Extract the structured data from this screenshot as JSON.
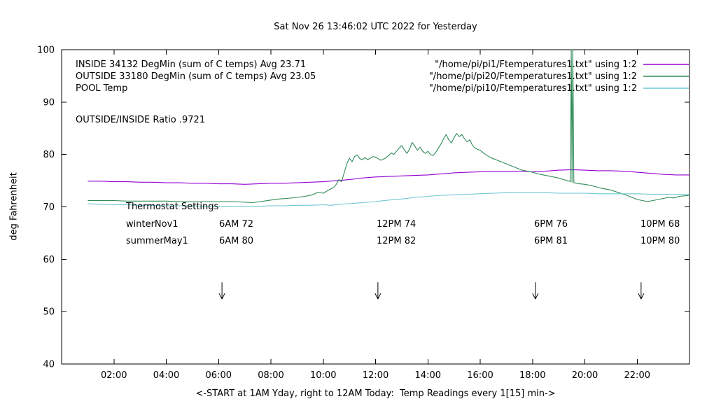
{
  "chart_data": {
    "type": "line",
    "title": "Sat Nov 26 13:46:02 UTC 2022 for Yesterday",
    "xlabel": "<-START at 1AM Yday, right to 12AM Today:  Temp Readings every 1[15] min->",
    "ylabel": "deg Fahrenheit",
    "xlim": [
      0,
      24
    ],
    "ylim": [
      40,
      100
    ],
    "grid": false,
    "yticks": [
      40,
      50,
      60,
      70,
      80,
      90,
      100
    ],
    "xticks": [
      {
        "v": 2,
        "label": "02:00"
      },
      {
        "v": 4,
        "label": "04:00"
      },
      {
        "v": 6,
        "label": "06:00"
      },
      {
        "v": 8,
        "label": "08:00"
      },
      {
        "v": 10,
        "label": "10:00"
      },
      {
        "v": 12,
        "label": "12:00"
      },
      {
        "v": 14,
        "label": "14:00"
      },
      {
        "v": 16,
        "label": "16:00"
      },
      {
        "v": 18,
        "label": "18:00"
      },
      {
        "v": 20,
        "label": "20:00"
      },
      {
        "v": 22,
        "label": "22:00"
      }
    ],
    "arrows_x": [
      6.13,
      12.09,
      18.11,
      22.15
    ],
    "arrow_y": [
      55.6,
      52.4
    ],
    "series": [
      {
        "name": "INSIDE",
        "color": "#9400d3",
        "points": [
          [
            1,
            74.9
          ],
          [
            1.5,
            74.9
          ],
          [
            2,
            74.8
          ],
          [
            2.5,
            74.8
          ],
          [
            3,
            74.7
          ],
          [
            3.5,
            74.7
          ],
          [
            4,
            74.6
          ],
          [
            4.5,
            74.6
          ],
          [
            5,
            74.5
          ],
          [
            5.5,
            74.5
          ],
          [
            6,
            74.4
          ],
          [
            6.5,
            74.4
          ],
          [
            7,
            74.3
          ],
          [
            7.5,
            74.4
          ],
          [
            8,
            74.5
          ],
          [
            8.5,
            74.5
          ],
          [
            9,
            74.6
          ],
          [
            9.5,
            74.7
          ],
          [
            10,
            74.8
          ],
          [
            10.5,
            75.0
          ],
          [
            11,
            75.2
          ],
          [
            11.5,
            75.5
          ],
          [
            12,
            75.7
          ],
          [
            12.5,
            75.8
          ],
          [
            13,
            75.9
          ],
          [
            13.5,
            76.0
          ],
          [
            14,
            76.1
          ],
          [
            14.5,
            76.3
          ],
          [
            15,
            76.5
          ],
          [
            15.5,
            76.6
          ],
          [
            16,
            76.7
          ],
          [
            16.5,
            76.8
          ],
          [
            17,
            76.8
          ],
          [
            17.5,
            76.8
          ],
          [
            18,
            76.7
          ],
          [
            18.5,
            76.8
          ],
          [
            19,
            77.0
          ],
          [
            19.5,
            77.1
          ],
          [
            20,
            77.0
          ],
          [
            20.5,
            76.9
          ],
          [
            21,
            76.9
          ],
          [
            21.5,
            76.8
          ],
          [
            22,
            76.6
          ],
          [
            22.5,
            76.4
          ],
          [
            23,
            76.2
          ],
          [
            23.5,
            76.1
          ],
          [
            24,
            76.1
          ]
        ]
      },
      {
        "name": "OUTSIDE",
        "color": "#2e8b57",
        "points": [
          [
            1,
            71.2
          ],
          [
            1.5,
            71.2
          ],
          [
            2,
            71.2
          ],
          [
            2.5,
            71.1
          ],
          [
            3,
            71.1
          ],
          [
            3.5,
            71.1
          ],
          [
            4,
            71.1
          ],
          [
            4.5,
            71.0
          ],
          [
            5,
            71.0
          ],
          [
            5.5,
            71.0
          ],
          [
            6,
            71.0
          ],
          [
            6.5,
            71.0
          ],
          [
            7,
            70.9
          ],
          [
            7.3,
            70.8
          ],
          [
            7.6,
            71.0
          ],
          [
            8,
            71.3
          ],
          [
            8.3,
            71.5
          ],
          [
            8.6,
            71.6
          ],
          [
            9,
            71.8
          ],
          [
            9.3,
            72.0
          ],
          [
            9.6,
            72.3
          ],
          [
            9.8,
            72.8
          ],
          [
            10,
            72.6
          ],
          [
            10.2,
            73.2
          ],
          [
            10.4,
            73.7
          ],
          [
            10.5,
            74.3
          ],
          [
            10.6,
            75.2
          ],
          [
            10.7,
            74.8
          ],
          [
            10.8,
            76.5
          ],
          [
            10.9,
            78.2
          ],
          [
            11,
            79.3
          ],
          [
            11.1,
            78.6
          ],
          [
            11.2,
            79.6
          ],
          [
            11.3,
            79.9
          ],
          [
            11.4,
            79.2
          ],
          [
            11.5,
            79.0
          ],
          [
            11.6,
            79.4
          ],
          [
            11.7,
            79.0
          ],
          [
            11.8,
            79.3
          ],
          [
            11.9,
            79.6
          ],
          [
            12,
            79.5
          ],
          [
            12.1,
            79.2
          ],
          [
            12.2,
            78.9
          ],
          [
            12.3,
            79.1
          ],
          [
            12.4,
            79.4
          ],
          [
            12.5,
            79.8
          ],
          [
            12.6,
            80.3
          ],
          [
            12.7,
            80.0
          ],
          [
            12.8,
            80.6
          ],
          [
            12.9,
            81.2
          ],
          [
            13,
            81.7
          ],
          [
            13.1,
            80.9
          ],
          [
            13.2,
            80.2
          ],
          [
            13.3,
            81.0
          ],
          [
            13.4,
            82.3
          ],
          [
            13.5,
            81.6
          ],
          [
            13.6,
            80.8
          ],
          [
            13.7,
            81.4
          ],
          [
            13.8,
            80.6
          ],
          [
            13.9,
            80.2
          ],
          [
            14,
            80.6
          ],
          [
            14.1,
            80.0
          ],
          [
            14.2,
            79.8
          ],
          [
            14.3,
            80.4
          ],
          [
            14.4,
            81.2
          ],
          [
            14.5,
            82.0
          ],
          [
            14.6,
            83.0
          ],
          [
            14.7,
            83.8
          ],
          [
            14.8,
            82.8
          ],
          [
            14.9,
            82.2
          ],
          [
            15,
            83.2
          ],
          [
            15.1,
            84.0
          ],
          [
            15.2,
            83.4
          ],
          [
            15.3,
            83.8
          ],
          [
            15.4,
            83.0
          ],
          [
            15.5,
            82.4
          ],
          [
            15.6,
            82.8
          ],
          [
            15.7,
            81.8
          ],
          [
            15.8,
            81.2
          ],
          [
            16,
            80.8
          ],
          [
            16.2,
            80.0
          ],
          [
            16.4,
            79.4
          ],
          [
            16.6,
            79.0
          ],
          [
            16.8,
            78.6
          ],
          [
            17,
            78.2
          ],
          [
            17.3,
            77.6
          ],
          [
            17.6,
            77.0
          ],
          [
            18,
            76.6
          ],
          [
            18.3,
            76.2
          ],
          [
            18.6,
            75.9
          ],
          [
            19,
            75.5
          ],
          [
            19.2,
            75.2
          ],
          [
            19.4,
            74.9
          ],
          [
            19.45,
            74.8
          ],
          [
            19.48,
            100
          ],
          [
            19.51,
            74.7
          ],
          [
            19.54,
            100
          ],
          [
            19.58,
            74.6
          ],
          [
            19.8,
            74.4
          ],
          [
            20,
            74.3
          ],
          [
            20.3,
            74.0
          ],
          [
            20.6,
            73.6
          ],
          [
            21,
            73.2
          ],
          [
            21.3,
            72.7
          ],
          [
            21.6,
            72.2
          ],
          [
            21.8,
            71.8
          ],
          [
            22,
            71.4
          ],
          [
            22.2,
            71.2
          ],
          [
            22.4,
            71.0
          ],
          [
            22.6,
            71.2
          ],
          [
            22.8,
            71.4
          ],
          [
            23,
            71.6
          ],
          [
            23.2,
            71.8
          ],
          [
            23.4,
            71.7
          ],
          [
            23.6,
            72.0
          ],
          [
            23.8,
            72.1
          ],
          [
            24,
            72.2
          ]
        ]
      },
      {
        "name": "POOL",
        "color": "#6ec6d2",
        "points": [
          [
            1,
            70.6
          ],
          [
            1.5,
            70.5
          ],
          [
            2,
            70.4
          ],
          [
            2.5,
            70.4
          ],
          [
            3,
            70.3
          ],
          [
            3.5,
            70.3
          ],
          [
            4,
            70.2
          ],
          [
            4.5,
            70.2
          ],
          [
            5,
            70.2
          ],
          [
            5.5,
            70.1
          ],
          [
            6,
            70.1
          ],
          [
            6.5,
            70.1
          ],
          [
            7,
            70.1
          ],
          [
            7.5,
            70.1
          ],
          [
            8,
            70.2
          ],
          [
            8.5,
            70.2
          ],
          [
            9,
            70.3
          ],
          [
            9.5,
            70.3
          ],
          [
            10,
            70.4
          ],
          [
            10.3,
            70.3
          ],
          [
            10.6,
            70.5
          ],
          [
            11,
            70.6
          ],
          [
            11.5,
            70.8
          ],
          [
            12,
            71.0
          ],
          [
            12.5,
            71.3
          ],
          [
            13,
            71.5
          ],
          [
            13.5,
            71.8
          ],
          [
            14,
            72.0
          ],
          [
            14.5,
            72.2
          ],
          [
            15,
            72.3
          ],
          [
            15.5,
            72.4
          ],
          [
            16,
            72.5
          ],
          [
            16.5,
            72.6
          ],
          [
            17,
            72.7
          ],
          [
            17.5,
            72.7
          ],
          [
            18,
            72.7
          ],
          [
            18.5,
            72.7
          ],
          [
            19,
            72.6
          ],
          [
            19.5,
            72.6
          ],
          [
            20,
            72.6
          ],
          [
            20.5,
            72.5
          ],
          [
            21,
            72.5
          ],
          [
            21.5,
            72.5
          ],
          [
            22,
            72.5
          ],
          [
            22.5,
            72.4
          ],
          [
            23,
            72.4
          ],
          [
            23.5,
            72.4
          ],
          [
            24,
            72.4
          ]
        ]
      }
    ]
  },
  "legend": [
    {
      "left": "INSIDE 34132 DegMin (sum of C temps) Avg 23.71",
      "right": "\"/home/pi/pi1/Ftemperatures1.txt\" using 1:2"
    },
    {
      "left": "OUTSIDE 33180 DegMin (sum of C temps) Avg 23.05",
      "right": "\"/home/pi/pi20/Ftemperatures1.txt\" using 1:2"
    },
    {
      "left": "POOL Temp",
      "right": "\"/home/pi/pi10/Ftemperatures1.txt\" using 1:2"
    }
  ],
  "annotations": {
    "ratio_label": "OUTSIDE/INSIDE Ratio .9721",
    "thermostat": {
      "heading": "Thermostat Settings",
      "rows": [
        {
          "label": "winterNov1",
          "values": [
            "6AM 72",
            "12PM 74",
            "6PM 76",
            "10PM 68"
          ]
        },
        {
          "label": "summerMay1",
          "values": [
            "6AM 80",
            "12PM 82",
            "6PM 81",
            "10PM 80"
          ]
        }
      ]
    }
  }
}
